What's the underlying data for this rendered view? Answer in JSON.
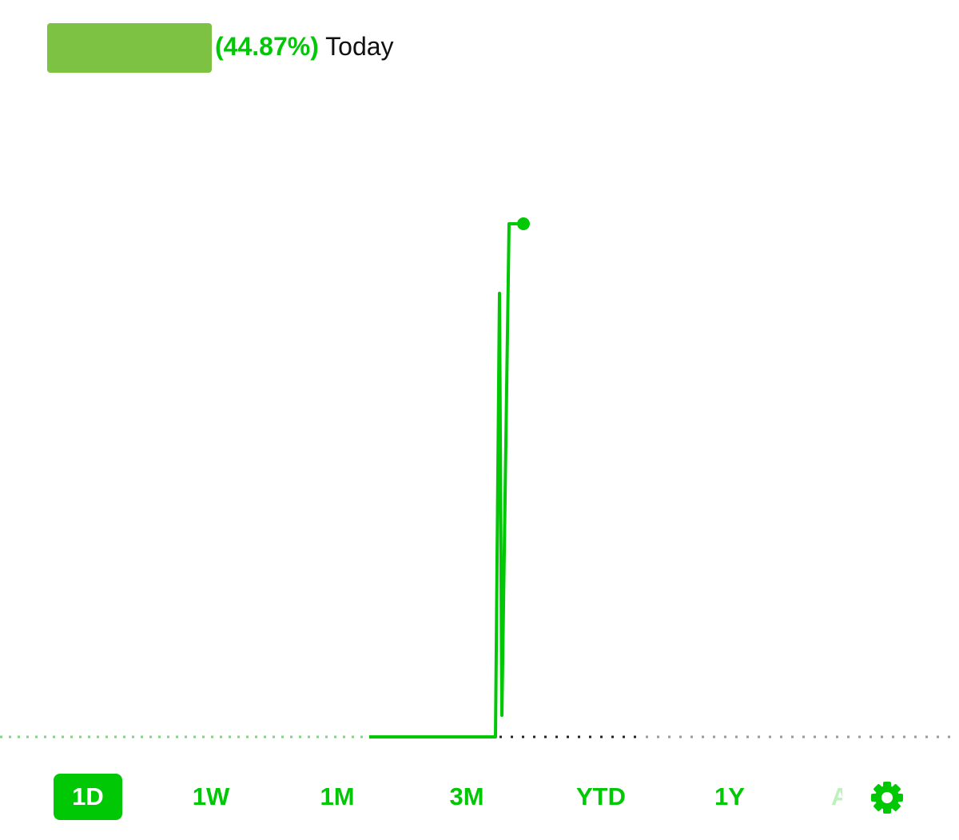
{
  "header": {
    "change_percent": "(44.87%)",
    "period_label": "Today"
  },
  "tabs": [
    "1D",
    "1W",
    "1M",
    "3M",
    "YTD",
    "1Y",
    "A"
  ]
}
